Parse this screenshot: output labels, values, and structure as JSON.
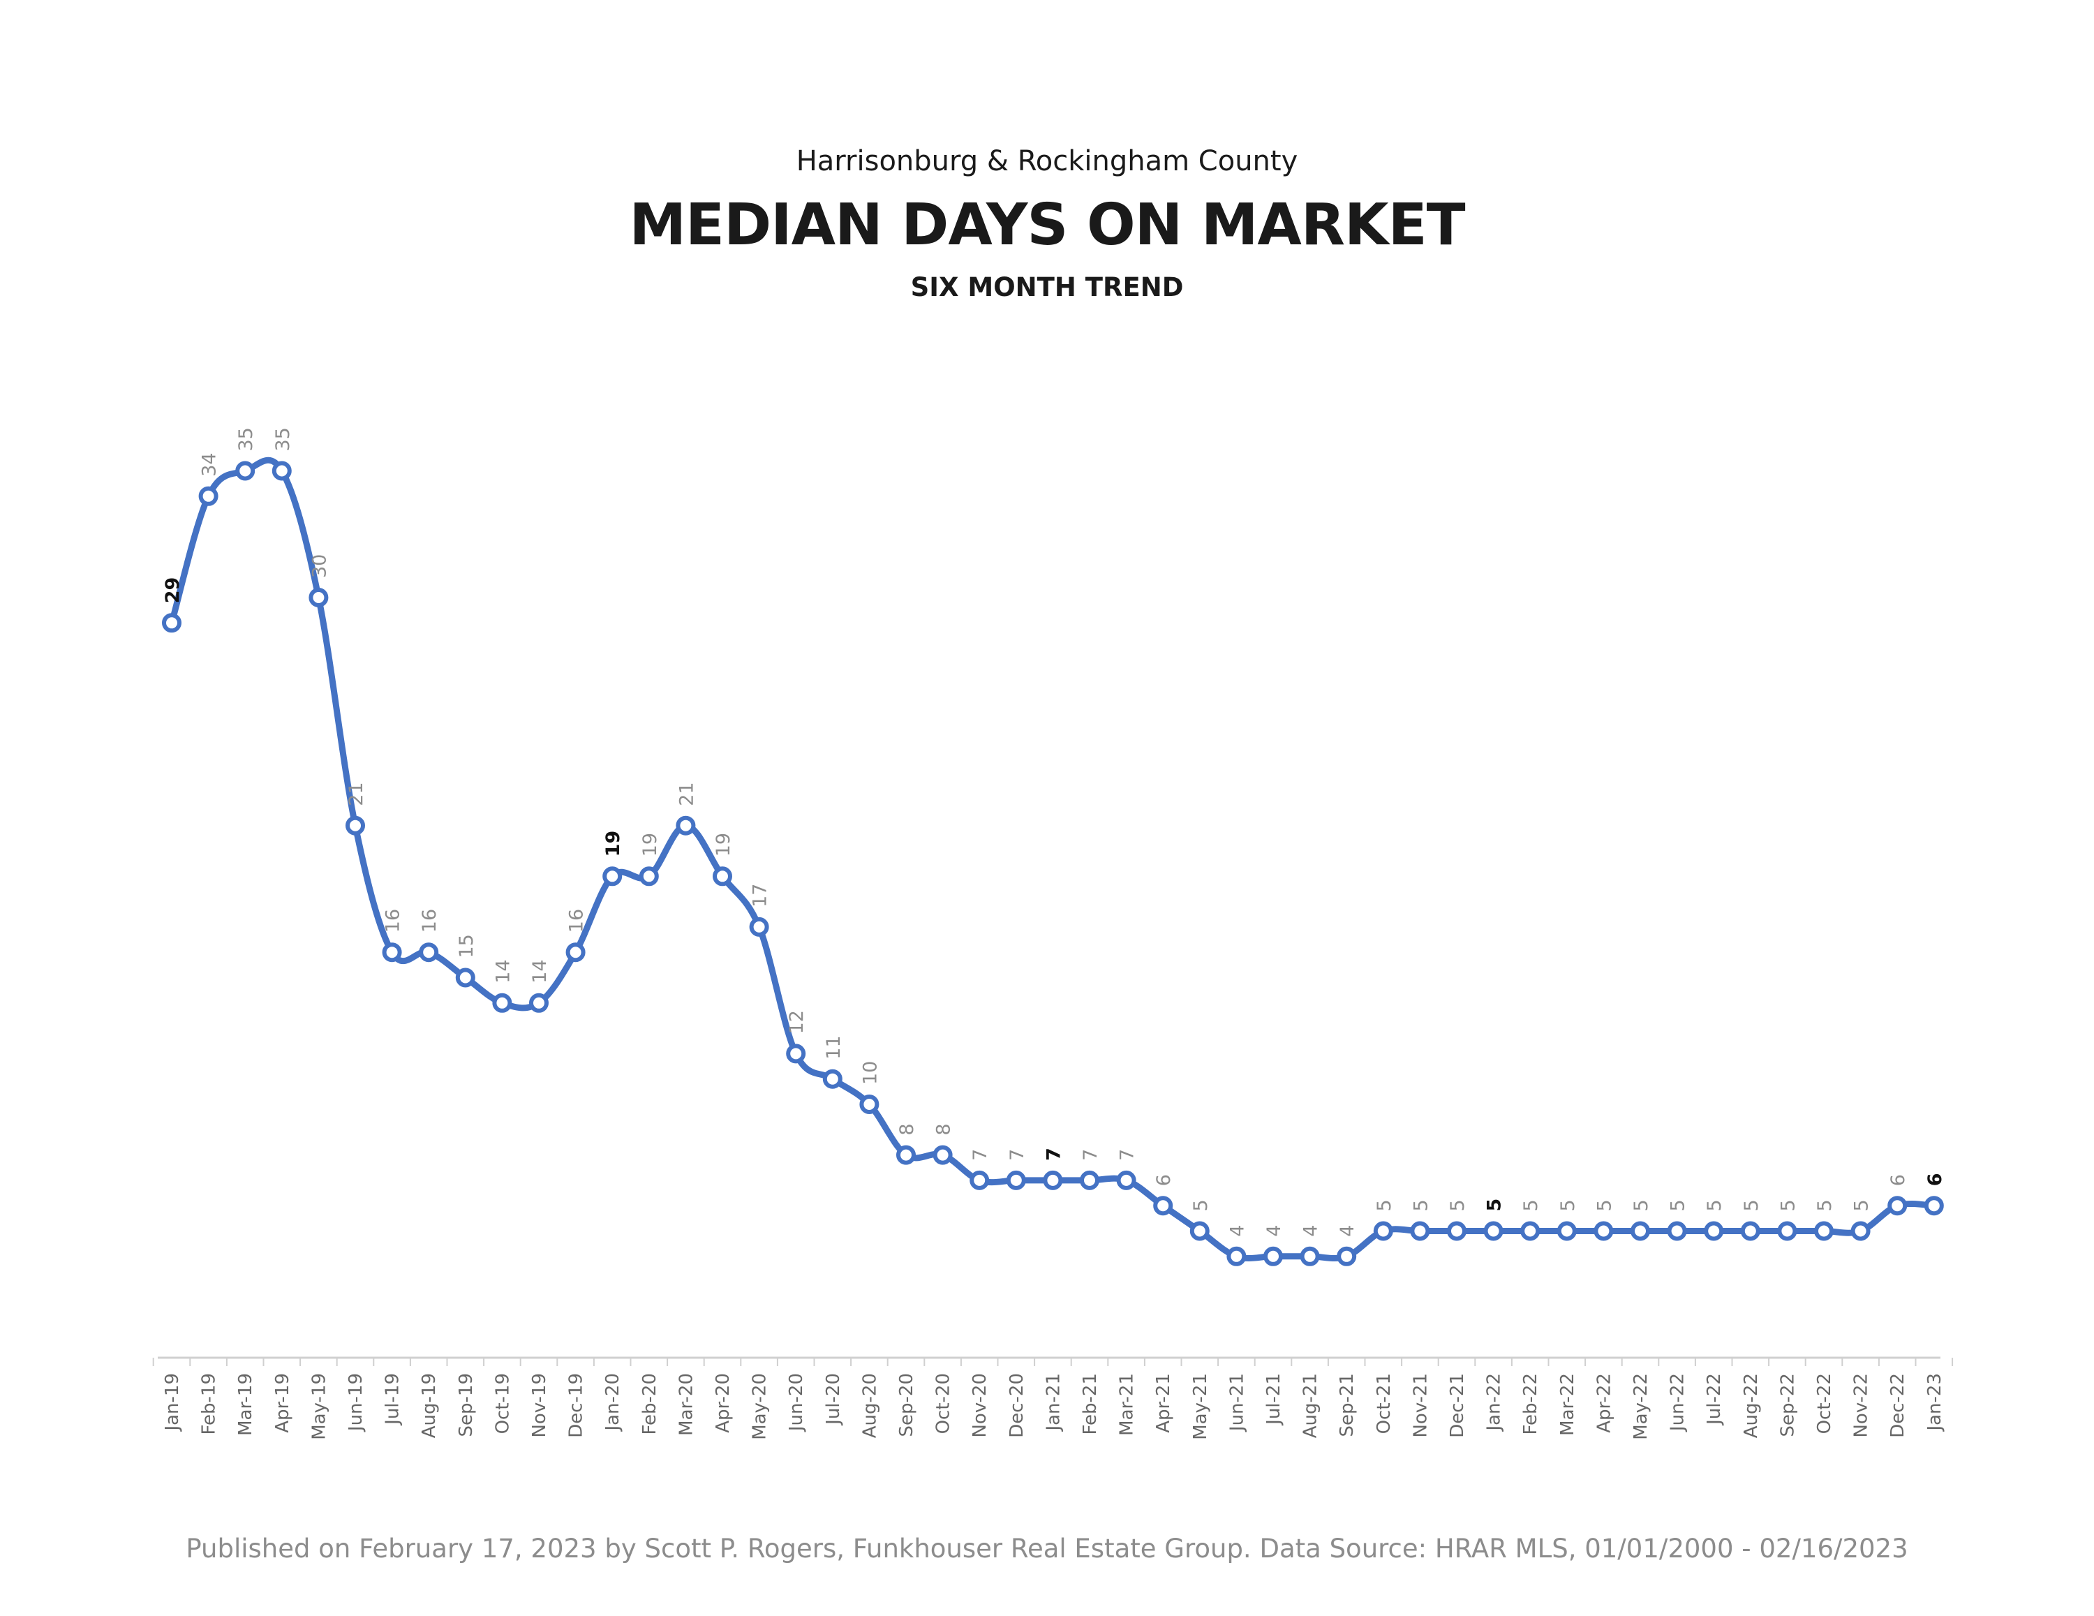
{
  "header": {
    "subtitle": "Harrisonburg & Rockingham County",
    "title": "MEDIAN DAYS ON MARKET",
    "subtitle2": "SIX MONTH TREND"
  },
  "footer": "Published on February 17, 2023 by Scott P. Rogers, Funkhouser Real Estate Group. Data Source: HRAR MLS, 01/01/2000 - 02/16/2023",
  "chart_data": {
    "type": "line",
    "title": "MEDIAN DAYS ON MARKET",
    "subtitle": "SIX MONTH TREND",
    "x": [
      "Jan-19",
      "Feb-19",
      "Mar-19",
      "Apr-19",
      "May-19",
      "Jun-19",
      "Jul-19",
      "Aug-19",
      "Sep-19",
      "Oct-19",
      "Nov-19",
      "Dec-19",
      "Jan-20",
      "Feb-20",
      "Mar-20",
      "Apr-20",
      "May-20",
      "Jun-20",
      "Jul-20",
      "Aug-20",
      "Sep-20",
      "Oct-20",
      "Nov-20",
      "Dec-20",
      "Jan-21",
      "Feb-21",
      "Mar-21",
      "Apr-21",
      "May-21",
      "Jun-21",
      "Jul-21",
      "Aug-21",
      "Sep-21",
      "Oct-21",
      "Nov-21",
      "Dec-21",
      "Jan-22",
      "Feb-22",
      "Mar-22",
      "Apr-22",
      "May-22",
      "Jun-22",
      "Jul-22",
      "Aug-22",
      "Sep-22",
      "Oct-22",
      "Nov-22",
      "Dec-22",
      "Jan-23"
    ],
    "values": [
      29,
      34,
      35,
      35,
      30,
      21,
      16,
      16,
      15,
      14,
      14,
      16,
      19,
      19,
      21,
      19,
      17,
      12,
      11,
      10,
      8,
      8,
      7,
      7,
      7,
      7,
      7,
      6,
      5,
      4,
      4,
      4,
      4,
      5,
      5,
      5,
      5,
      5,
      5,
      5,
      5,
      5,
      5,
      5,
      5,
      5,
      5,
      6,
      6
    ],
    "highlighted_labels": [
      "Jan-19",
      "Jan-20",
      "Jan-21",
      "Jan-22",
      "Jan-23"
    ],
    "ylim": [
      0,
      38
    ],
    "grid": false,
    "legend": "none",
    "line_color": "#4472C4",
    "marker_fill": "#ffffff"
  }
}
